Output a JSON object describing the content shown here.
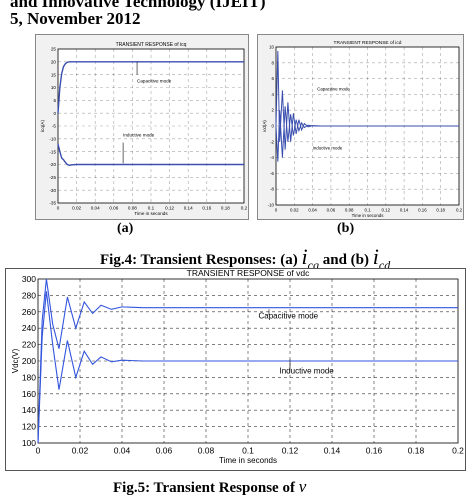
{
  "header": {
    "line1": "and Innovative Technology (IJEIT)",
    "line2": "5, November 2012"
  },
  "fig4": {
    "caption_prefix": "Fig.4: Transient Responses: (a)",
    "caption_mid": "and (b)",
    "sym_a": "i",
    "sub_a": "cq",
    "sym_b": "i",
    "sub_b": "cd",
    "label_a": "(a)",
    "label_b": "(b)"
  },
  "fig5": {
    "caption": "Fig.5: Transient Response of",
    "caption_sym": "v"
  },
  "chart_data": [
    {
      "type": "line",
      "title": "TRANSIENT RESPONSE of icq",
      "xlabel": "Time in seconds",
      "ylabel": "icq(A)",
      "xlim": [
        0,
        0.2
      ],
      "ylim": [
        -35,
        25
      ],
      "xticks": [
        "0",
        "0.02",
        "0.04",
        "0.06",
        "0.08",
        "0.1",
        "0.12",
        "0.14",
        "0.16",
        "0.18",
        "0.2"
      ],
      "yticks": [
        "25",
        "20",
        "15",
        "10",
        "5",
        "0",
        "-5",
        "-10",
        "-15",
        "-20",
        "-25",
        "-30",
        "-35"
      ],
      "grid": true,
      "series": [
        {
          "name": "Capacitive mode",
          "x": [
            0,
            0.002,
            0.004,
            0.006,
            0.008,
            0.01,
            0.012,
            0.015,
            0.02,
            0.2
          ],
          "y": [
            0,
            10,
            15.5,
            18.2,
            19.3,
            19.8,
            20,
            20,
            20,
            20
          ]
        },
        {
          "name": "Inductive mode",
          "x": [
            0,
            0.002,
            0.004,
            0.006,
            0.008,
            0.01,
            0.012,
            0.015,
            0.02,
            0.2
          ],
          "y": [
            -12,
            -15,
            -17.5,
            -18.2,
            -19.2,
            -20,
            -20.3,
            -20.1,
            -20,
            -20
          ]
        }
      ],
      "annotations": [
        "Capacitive mode",
        "Inductive mode"
      ]
    },
    {
      "type": "line",
      "title": "TRANSIENT RESPONSE of icd",
      "xlabel": "Time in seconds",
      "ylabel": "icd(A)",
      "xlim": [
        0,
        0.2
      ],
      "ylim": [
        -10,
        10
      ],
      "xticks": [
        "0",
        "0.02",
        "0.04",
        "0.06",
        "0.08",
        "0.1",
        "0.12",
        "0.14",
        "0.16",
        "0.18",
        "0.2"
      ],
      "yticks": [
        "10",
        "8",
        "6",
        "4",
        "2",
        "0",
        "-2",
        "-4",
        "-6",
        "-8",
        "-10"
      ],
      "grid": true,
      "series": [
        {
          "name": "Capacitive mode",
          "x": [
            0,
            0.002,
            0.004,
            0.007,
            0.01,
            0.013,
            0.016,
            0.019,
            0.022,
            0.025,
            0.028,
            0.031,
            0.035,
            0.04,
            0.05,
            0.2
          ],
          "y": [
            0,
            9.5,
            -2,
            4.5,
            -3,
            3,
            -2,
            1.6,
            -1,
            0.8,
            -0.5,
            0.3,
            -0.1,
            0.05,
            0,
            0
          ]
        },
        {
          "name": "Inductive mode",
          "x": [
            0,
            0.002,
            0.004,
            0.007,
            0.01,
            0.013,
            0.016,
            0.019,
            0.022,
            0.025,
            0.028,
            0.031,
            0.035,
            0.04,
            0.05,
            0.2
          ],
          "y": [
            0,
            -4.5,
            2,
            -4,
            2.5,
            -2,
            1.5,
            -1.2,
            0.8,
            -0.6,
            0.4,
            -0.2,
            0.1,
            0,
            0,
            0
          ]
        }
      ],
      "annotations": [
        "Capacitive mode",
        "Inductive mode"
      ]
    },
    {
      "type": "line",
      "title": "TRANSIENT RESPONSE of vdc",
      "xlabel": "Time in seconds",
      "ylabel": "Vdc(V)",
      "xlim": [
        0,
        0.2
      ],
      "ylim": [
        100,
        300
      ],
      "xticks": [
        "0",
        "0.02",
        "0.04",
        "0.06",
        "0.08",
        "0.1",
        "0.12",
        "0.14",
        "0.16",
        "0.18",
        "0.2"
      ],
      "yticks": [
        "300",
        "280",
        "260",
        "240",
        "220",
        "200",
        "180",
        "160",
        "140",
        "120",
        "100"
      ],
      "grid": true,
      "series": [
        {
          "name": "Capacitive mode",
          "x": [
            0,
            0.002,
            0.004,
            0.007,
            0.01,
            0.014,
            0.018,
            0.022,
            0.026,
            0.03,
            0.035,
            0.04,
            0.05,
            0.2
          ],
          "y": [
            100,
            250,
            300,
            245,
            215,
            278,
            240,
            272,
            258,
            268,
            263,
            266,
            265,
            265
          ]
        },
        {
          "name": "Inductive mode",
          "x": [
            0,
            0.002,
            0.004,
            0.007,
            0.01,
            0.014,
            0.018,
            0.022,
            0.026,
            0.03,
            0.035,
            0.04,
            0.05,
            0.2
          ],
          "y": [
            100,
            230,
            285,
            220,
            165,
            225,
            180,
            212,
            196,
            205,
            199,
            201,
            200,
            200
          ]
        }
      ],
      "annotations": [
        "Capacitive mode",
        "Inductive mode"
      ]
    }
  ]
}
